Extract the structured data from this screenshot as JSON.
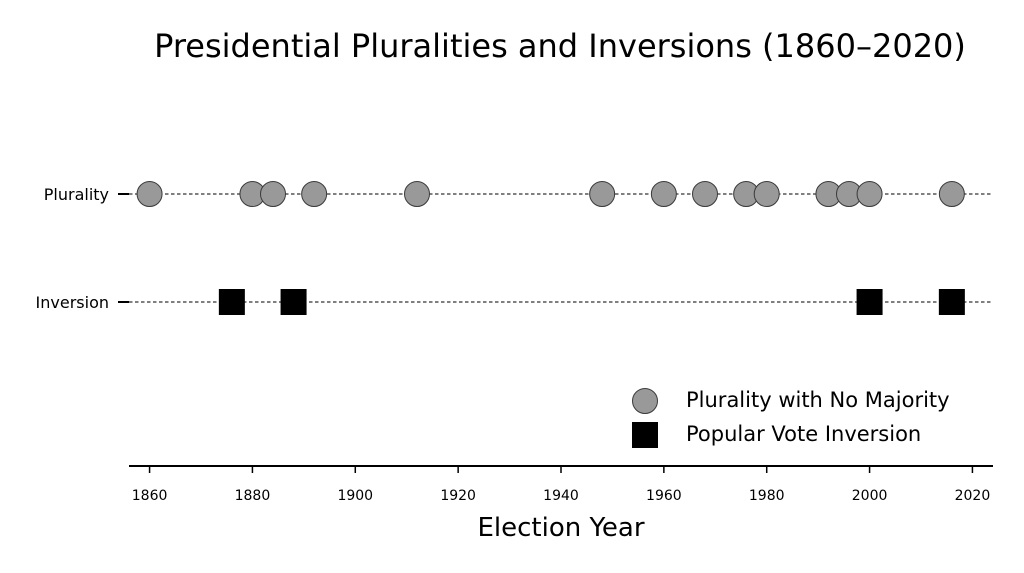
{
  "chart_data": {
    "type": "scatter",
    "title": "Presidential Pluralities and Inversions (1860–2020)",
    "xlabel": "Election Year",
    "ylabel": "",
    "xlim": [
      1856,
      2024
    ],
    "x_ticks": [
      1860,
      1880,
      1900,
      1920,
      1940,
      1960,
      1980,
      2000,
      2020
    ],
    "categories": [
      "Plurality",
      "Inversion"
    ],
    "grid": false,
    "legend_position": "bottom-right",
    "series": [
      {
        "name": "Plurality with No Majority",
        "category": "Plurality",
        "marker": "circle",
        "color": "#999999",
        "x": [
          1860,
          1880,
          1884,
          1892,
          1912,
          1948,
          1960,
          1968,
          1976,
          1980,
          1992,
          1996,
          2000,
          2016
        ]
      },
      {
        "name": "Popular Vote Inversion",
        "category": "Inversion",
        "marker": "square",
        "color": "#000000",
        "x": [
          1876,
          1888,
          2000,
          2016
        ]
      }
    ]
  }
}
